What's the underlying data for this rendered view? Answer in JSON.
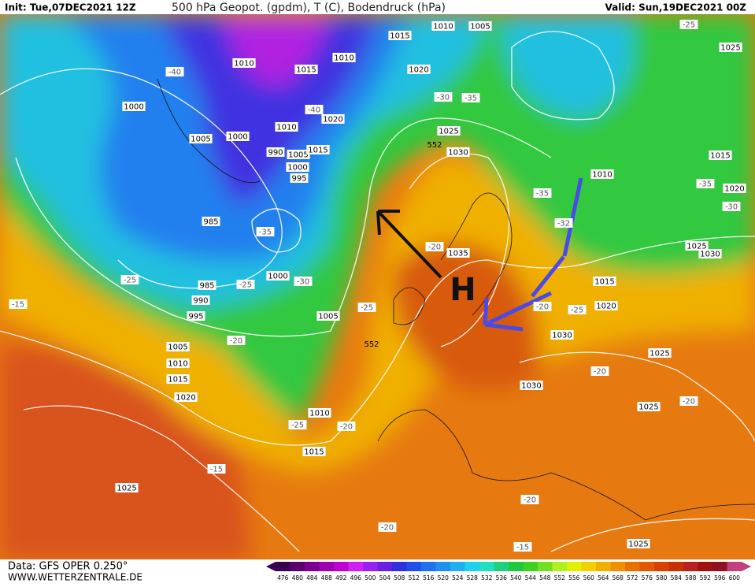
{
  "header": {
    "init": "Init: Tue,07DEC2021 12Z",
    "title": "500 hPa Geopot. (gpdm), T (C), Bodendruck (hPa)",
    "valid": "Valid: Sun,19DEC2021 00Z"
  },
  "footer": {
    "data": "Data: GFS OPER 0.250°",
    "site": "WWW.WETTERZENTRALE.DE"
  },
  "legend": {
    "labels": [
      476,
      480,
      484,
      488,
      492,
      496,
      500,
      504,
      508,
      512,
      516,
      520,
      524,
      528,
      532,
      536,
      540,
      544,
      548,
      552,
      556,
      560,
      564,
      568,
      572,
      576,
      580,
      584,
      588,
      592,
      596,
      600
    ],
    "colors": [
      "#3a0050",
      "#5a0070",
      "#7a0090",
      "#a000b0",
      "#c000d0",
      "#d020f0",
      "#9a20f0",
      "#6a20e0",
      "#3030e0",
      "#2050e8",
      "#2070f0",
      "#2090f0",
      "#20b0f0",
      "#20d0f0",
      "#20e0c0",
      "#20d080",
      "#20c840",
      "#40d020",
      "#70e020",
      "#b0f020",
      "#e0f000",
      "#f0d000",
      "#f0b000",
      "#f09000",
      "#e87000",
      "#e05800",
      "#d84000",
      "#c83000",
      "#b82020",
      "#a01010",
      "#901020",
      "#c04080"
    ]
  },
  "map": {
    "pressure_labels": [
      "1015",
      "1010",
      "1005",
      "1010",
      "1010",
      "1015",
      "1020",
      "1000",
      "1020",
      "1010",
      "1025",
      "1005",
      "1000",
      "990",
      "1005",
      "1015",
      "1030",
      "1000",
      "995",
      "1010",
      "1015",
      "1020",
      "985",
      "1035",
      "1025",
      "1030",
      "1015",
      "1000",
      "985",
      "990",
      "995",
      "1005",
      "1020",
      "1005",
      "1010",
      "1015",
      "1020",
      "1030",
      "1030",
      "1025",
      "1025",
      "1010",
      "1015",
      "1025",
      "1025",
      "1025"
    ],
    "temperature_labels": [
      "-25",
      "-40",
      "-30",
      "-35",
      "-40",
      "-35",
      "-35",
      "-30",
      "-35",
      "-32",
      "-20",
      "-25",
      "-25",
      "-30",
      "-15",
      "-25",
      "-20",
      "-25",
      "-20",
      "-20",
      "-20",
      "-25",
      "-20",
      "-15",
      "-20",
      "-20",
      "-15"
    ],
    "geopotential_labels": [
      "552",
      "552"
    ],
    "high_marker": "H"
  }
}
